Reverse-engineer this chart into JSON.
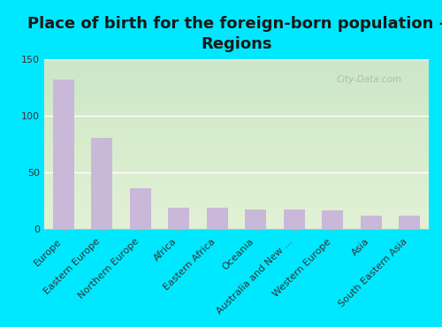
{
  "title": "Place of birth for the foreign-born population -\nRegions",
  "categories": [
    "Europe",
    "Eastern Europe",
    "Northern Europe",
    "Africa",
    "Eastern Africa",
    "Oceania",
    "Australia and New ...",
    "Western Europe",
    "Asia",
    "South Eastern Asia"
  ],
  "values": [
    132,
    80,
    36,
    19,
    19,
    17,
    17,
    16,
    12,
    12
  ],
  "bar_color": "#c9b8d8",
  "background_color": "#00e8ff",
  "ylim": [
    0,
    150
  ],
  "yticks": [
    0,
    50,
    100,
    150
  ],
  "watermark": "City-Data.com",
  "title_fontsize": 13,
  "tick_fontsize": 8
}
